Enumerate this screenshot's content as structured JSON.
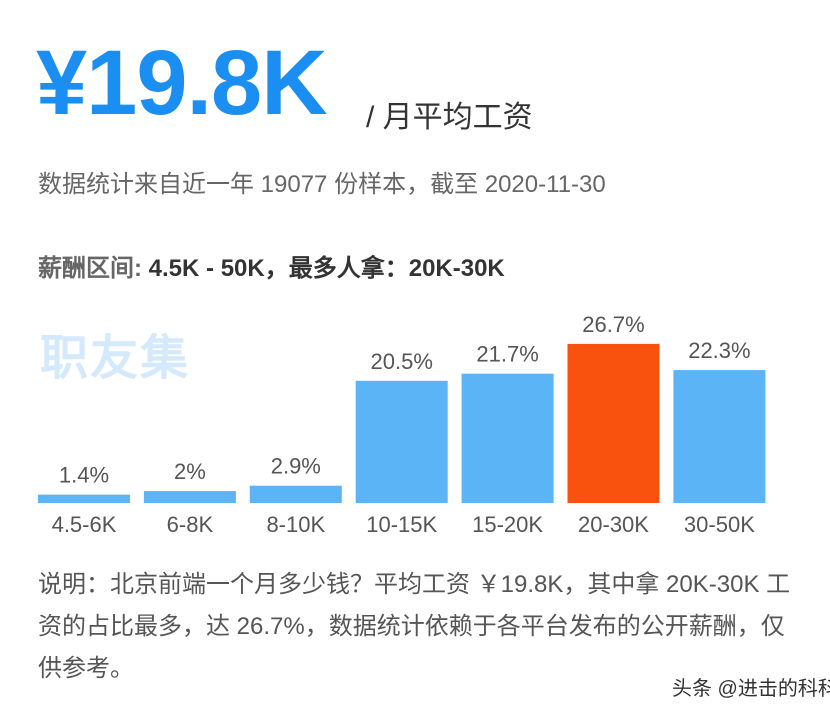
{
  "header": {
    "salary": "¥19.8K",
    "unit": "/ 月平均工资",
    "subtitle": "数据统计来自近一年 19077 份样本，截至 2020-11-30",
    "range_label": "薪酬区间:",
    "range_value": " 4.5K - 50K，最多人拿：20K-30K",
    "watermark": "职友集"
  },
  "chart_data": {
    "type": "bar",
    "categories": [
      "4.5-6K",
      "6-8K",
      "8-10K",
      "10-15K",
      "15-20K",
      "20-30K",
      "30-50K"
    ],
    "values": [
      1.4,
      2,
      2.9,
      20.5,
      21.7,
      26.7,
      22.3
    ],
    "value_labels": [
      "1.4%",
      "2%",
      "2.9%",
      "20.5%",
      "21.7%",
      "26.7%",
      "22.3%"
    ],
    "colors": [
      "#5ab4f5",
      "#5ab4f5",
      "#5ab4f5",
      "#5ab4f5",
      "#5ab4f5",
      "#f9520f",
      "#5ab4f5"
    ]
  },
  "note": "说明：北京前端一个月多少钱？平均工资 ￥19.8K，其中拿 20K-30K 工资的占比最多，达 26.7%，数据统计依赖于各平台发布的公开薪酬，仅供参考。",
  "footer": "头条 @进击的科科"
}
